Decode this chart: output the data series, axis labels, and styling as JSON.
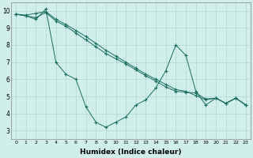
{
  "background_color": "#d0eeea",
  "grid_color": "#aad4ce",
  "line_color": "#1a6e60",
  "xlabel": "Humidex (Indice chaleur)",
  "xlim": [
    -0.5,
    23.5
  ],
  "ylim": [
    2.5,
    10.5
  ],
  "xticks": [
    0,
    1,
    2,
    3,
    4,
    5,
    6,
    7,
    8,
    9,
    10,
    11,
    12,
    13,
    14,
    15,
    16,
    17,
    18,
    19,
    20,
    21,
    22,
    23
  ],
  "yticks": [
    3,
    4,
    5,
    6,
    7,
    8,
    9,
    10
  ],
  "line1_x": [
    0,
    1,
    2,
    3,
    4,
    5,
    6,
    7,
    8,
    9,
    10,
    11,
    12,
    13,
    14,
    15,
    16,
    17,
    18,
    19,
    20,
    21,
    22,
    23
  ],
  "line1_y": [
    9.8,
    9.7,
    9.5,
    10.1,
    7.0,
    6.3,
    6.0,
    4.4,
    3.5,
    3.2,
    3.5,
    3.8,
    4.5,
    4.8,
    5.5,
    6.5,
    8.0,
    7.4,
    5.3,
    4.5,
    4.9,
    4.6,
    4.9,
    4.5
  ],
  "line2_x": [
    0,
    1,
    2,
    3,
    4,
    5,
    6,
    7,
    8,
    9,
    10,
    11,
    12,
    13,
    14,
    15,
    16,
    17,
    18,
    19,
    20,
    21,
    22,
    23
  ],
  "line2_y": [
    9.8,
    9.75,
    9.85,
    9.95,
    9.5,
    9.2,
    8.85,
    8.5,
    8.1,
    7.7,
    7.35,
    7.0,
    6.65,
    6.3,
    6.0,
    5.7,
    5.4,
    5.3,
    5.05,
    4.8,
    4.9,
    4.6,
    4.9,
    4.5
  ],
  "line3_x": [
    0,
    1,
    2,
    3,
    4,
    5,
    6,
    7,
    8,
    9,
    10,
    11,
    12,
    13,
    14,
    15,
    16,
    17,
    18,
    19,
    20,
    21,
    22,
    23
  ],
  "line3_y": [
    9.8,
    9.7,
    9.6,
    9.9,
    9.4,
    9.1,
    8.7,
    8.3,
    7.9,
    7.5,
    7.2,
    6.9,
    6.55,
    6.2,
    5.9,
    5.55,
    5.3,
    5.25,
    5.2,
    4.85,
    4.9,
    4.6,
    4.9,
    4.5
  ]
}
